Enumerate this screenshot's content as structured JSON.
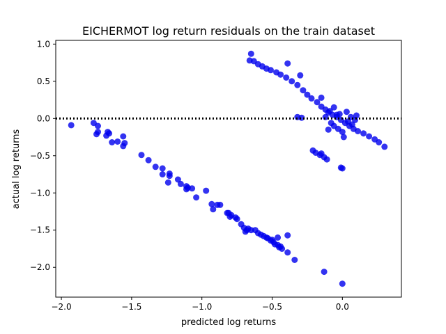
{
  "chart_data": {
    "type": "scatter",
    "title": "EICHERMOT log return residuals on the train dataset",
    "xlabel": "predicted log returns",
    "ylabel": "actual log returns",
    "xlim": [
      -2.04,
      0.42
    ],
    "ylim": [
      -2.4,
      1.05
    ],
    "x_ticks": [
      -2.0,
      -1.5,
      -1.0,
      -0.5,
      0.0
    ],
    "x_tick_labels": [
      "−2.0",
      "−1.5",
      "−1.0",
      "−0.5",
      "0.0"
    ],
    "y_ticks": [
      1.0,
      0.5,
      0.0,
      -0.5,
      -1.0,
      -1.5,
      -2.0
    ],
    "y_tick_labels": [
      "1.0",
      "0.5",
      "0.0",
      "−0.5",
      "−1.0",
      "−1.5",
      "−2.0"
    ],
    "grid": false,
    "reference_line": {
      "y": 0,
      "style": "dotted",
      "color": "#000000"
    },
    "point_color": "#0000ee",
    "series": [
      {
        "points": [
          [
            -1.93,
            -0.09
          ],
          [
            -1.77,
            -0.06
          ],
          [
            -1.74,
            -0.1
          ],
          [
            -1.74,
            -0.18
          ],
          [
            -1.75,
            -0.21
          ],
          [
            -1.68,
            -0.23
          ],
          [
            -1.67,
            -0.18
          ],
          [
            -1.66,
            -0.2
          ],
          [
            -1.64,
            -0.32
          ],
          [
            -1.6,
            -0.31
          ],
          [
            -1.56,
            -0.24
          ],
          [
            -1.56,
            -0.37
          ],
          [
            -1.55,
            -0.33
          ],
          [
            -1.43,
            -0.49
          ],
          [
            -1.38,
            -0.56
          ],
          [
            -1.33,
            -0.65
          ],
          [
            -1.28,
            -0.67
          ],
          [
            -1.28,
            -0.75
          ],
          [
            -1.24,
            -0.86
          ],
          [
            -1.23,
            -0.74
          ],
          [
            -1.23,
            -0.77
          ],
          [
            -1.17,
            -0.82
          ],
          [
            -1.15,
            -0.88
          ],
          [
            -1.11,
            -0.91
          ],
          [
            -1.11,
            -0.95
          ],
          [
            -1.1,
            -0.93
          ],
          [
            -1.07,
            -0.94
          ],
          [
            -1.04,
            -1.06
          ],
          [
            -0.97,
            -0.97
          ],
          [
            -0.93,
            -1.15
          ],
          [
            -0.92,
            -1.22
          ],
          [
            -0.89,
            -1.16
          ],
          [
            -0.87,
            -1.16
          ],
          [
            -0.82,
            -1.27
          ],
          [
            -0.81,
            -1.27
          ],
          [
            -0.8,
            -1.32
          ],
          [
            -0.79,
            -1.3
          ],
          [
            -0.76,
            -1.33
          ],
          [
            -0.75,
            -1.35
          ],
          [
            -0.72,
            -1.42
          ],
          [
            -0.7,
            -1.47
          ],
          [
            -0.69,
            -1.52
          ],
          [
            -0.68,
            -1.5
          ],
          [
            -0.67,
            -1.48
          ],
          [
            -0.65,
            -1.5
          ],
          [
            -0.62,
            -1.5
          ],
          [
            -0.6,
            -1.54
          ],
          [
            -0.58,
            -1.56
          ],
          [
            -0.56,
            -1.58
          ],
          [
            -0.54,
            -1.6
          ],
          [
            -0.53,
            -1.61
          ],
          [
            -0.51,
            -1.64
          ],
          [
            -0.5,
            -1.63
          ],
          [
            -0.49,
            -1.66
          ],
          [
            -0.48,
            -1.69
          ],
          [
            -0.46,
            -1.7
          ],
          [
            -0.45,
            -1.73
          ],
          [
            -0.44,
            -1.72
          ],
          [
            -0.43,
            -1.75
          ],
          [
            -0.46,
            -1.6
          ],
          [
            -0.39,
            -1.57
          ],
          [
            -0.39,
            -1.8
          ],
          [
            -0.34,
            -1.9
          ],
          [
            -0.13,
            -2.06
          ],
          [
            -0.0,
            -2.22
          ],
          [
            -0.65,
            0.87
          ],
          [
            -0.66,
            0.78
          ],
          [
            -0.63,
            0.77
          ],
          [
            -0.6,
            0.73
          ],
          [
            -0.57,
            0.7
          ],
          [
            -0.54,
            0.67
          ],
          [
            -0.51,
            0.65
          ],
          [
            -0.47,
            0.62
          ],
          [
            -0.44,
            0.59
          ],
          [
            -0.4,
            0.55
          ],
          [
            -0.39,
            0.74
          ],
          [
            -0.36,
            0.5
          ],
          [
            -0.32,
            0.45
          ],
          [
            -0.3,
            0.58
          ],
          [
            -0.28,
            0.38
          ],
          [
            -0.25,
            0.32
          ],
          [
            -0.22,
            0.27
          ],
          [
            -0.18,
            0.22
          ],
          [
            -0.15,
            0.16
          ],
          [
            -0.15,
            0.28
          ],
          [
            -0.12,
            0.12
          ],
          [
            -0.1,
            0.08
          ],
          [
            -0.07,
            0.05
          ],
          [
            -0.04,
            0.02
          ],
          [
            -0.01,
            -0.02
          ],
          [
            0.02,
            -0.06
          ],
          [
            0.05,
            -0.1
          ],
          [
            0.08,
            -0.14
          ],
          [
            0.11,
            -0.17
          ],
          [
            0.15,
            -0.2
          ],
          [
            0.19,
            -0.24
          ],
          [
            0.23,
            -0.28
          ],
          [
            0.26,
            -0.32
          ],
          [
            0.3,
            -0.38
          ],
          [
            -0.06,
            -0.1
          ],
          [
            -0.03,
            -0.14
          ],
          [
            0.0,
            -0.18
          ],
          [
            0.01,
            -0.25
          ],
          [
            -0.02,
            0.06
          ],
          [
            0.03,
            0.09
          ],
          [
            0.06,
            0.02
          ],
          [
            0.04,
            -0.04
          ],
          [
            -0.08,
            -0.06
          ],
          [
            0.09,
            -0.02
          ],
          [
            -0.09,
            0.1
          ],
          [
            -0.12,
            0.02
          ],
          [
            -0.06,
            0.15
          ],
          [
            0.1,
            0.04
          ],
          [
            0.07,
            -0.08
          ],
          [
            -0.32,
            0.02
          ],
          [
            -0.29,
            0.01
          ],
          [
            -0.1,
            -0.15
          ],
          [
            -0.04,
            0.05
          ],
          [
            -0.21,
            -0.43
          ],
          [
            -0.19,
            -0.46
          ],
          [
            -0.16,
            -0.49
          ],
          [
            -0.13,
            -0.52
          ],
          [
            -0.11,
            -0.55
          ],
          [
            -0.15,
            -0.47
          ],
          [
            -0.01,
            -0.66
          ],
          [
            0.0,
            -0.67
          ]
        ]
      }
    ]
  }
}
